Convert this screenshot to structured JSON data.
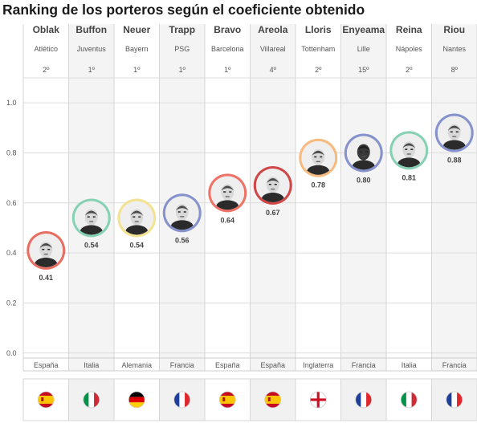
{
  "title": "Ranking de los porteros según el coeficiente obtenido",
  "chart_data": {
    "type": "scatter",
    "title": "Ranking de los porteros según el coeficiente obtenido",
    "ylim": [
      0.0,
      1.0
    ],
    "yticks": [
      "0.0",
      "0.2",
      "0.4",
      "0.6",
      "0.8",
      "1.0"
    ],
    "grid": true,
    "players": [
      {
        "name": "Oblak",
        "club": "Atlético",
        "rank": "2º",
        "value": 0.41,
        "value_label": "0.41",
        "country": "España",
        "flag": "spain-flag",
        "color": "#e8665a"
      },
      {
        "name": "Buffon",
        "club": "Juventus",
        "rank": "1º",
        "value": 0.54,
        "value_label": "0.54",
        "country": "Italia",
        "flag": "italy-flag",
        "color": "#7fcfb0"
      },
      {
        "name": "Neuer",
        "club": "Bayern",
        "rank": "1º",
        "value": 0.54,
        "value_label": "0.54",
        "country": "Alemania",
        "flag": "germany-flag",
        "color": "#f2e08c"
      },
      {
        "name": "Trapp",
        "club": "PSG",
        "rank": "1º",
        "value": 0.56,
        "value_label": "0.56",
        "country": "Francia",
        "flag": "france-flag",
        "color": "#7f8cc9"
      },
      {
        "name": "Bravo",
        "club": "Barcelona",
        "rank": "1º",
        "value": 0.64,
        "value_label": "0.64",
        "country": "España",
        "flag": "spain-flag",
        "color": "#ee6a5f"
      },
      {
        "name": "Areola",
        "club": "Villareal",
        "rank": "4º",
        "value": 0.67,
        "value_label": "0.67",
        "country": "España",
        "flag": "spain-flag",
        "color": "#cc3d3d"
      },
      {
        "name": "Lloris",
        "club": "Tottenham",
        "rank": "2º",
        "value": 0.78,
        "value_label": "0.78",
        "country": "Inglaterra",
        "flag": "england-flag",
        "color": "#f7b678"
      },
      {
        "name": "Enyeama",
        "club": "Lille",
        "rank": "15º",
        "value": 0.8,
        "value_label": "0.80",
        "country": "Francia",
        "flag": "france-flag",
        "color": "#7f8cc9"
      },
      {
        "name": "Reina",
        "club": "Nápoles",
        "rank": "2º",
        "value": 0.81,
        "value_label": "0.81",
        "country": "Italia",
        "flag": "italy-flag",
        "color": "#7fcfb0"
      },
      {
        "name": "Riou",
        "club": "Nantes",
        "rank": "8º",
        "value": 0.88,
        "value_label": "0.88",
        "country": "Francia",
        "flag": "france-flag",
        "color": "#7f8cc9"
      }
    ]
  }
}
